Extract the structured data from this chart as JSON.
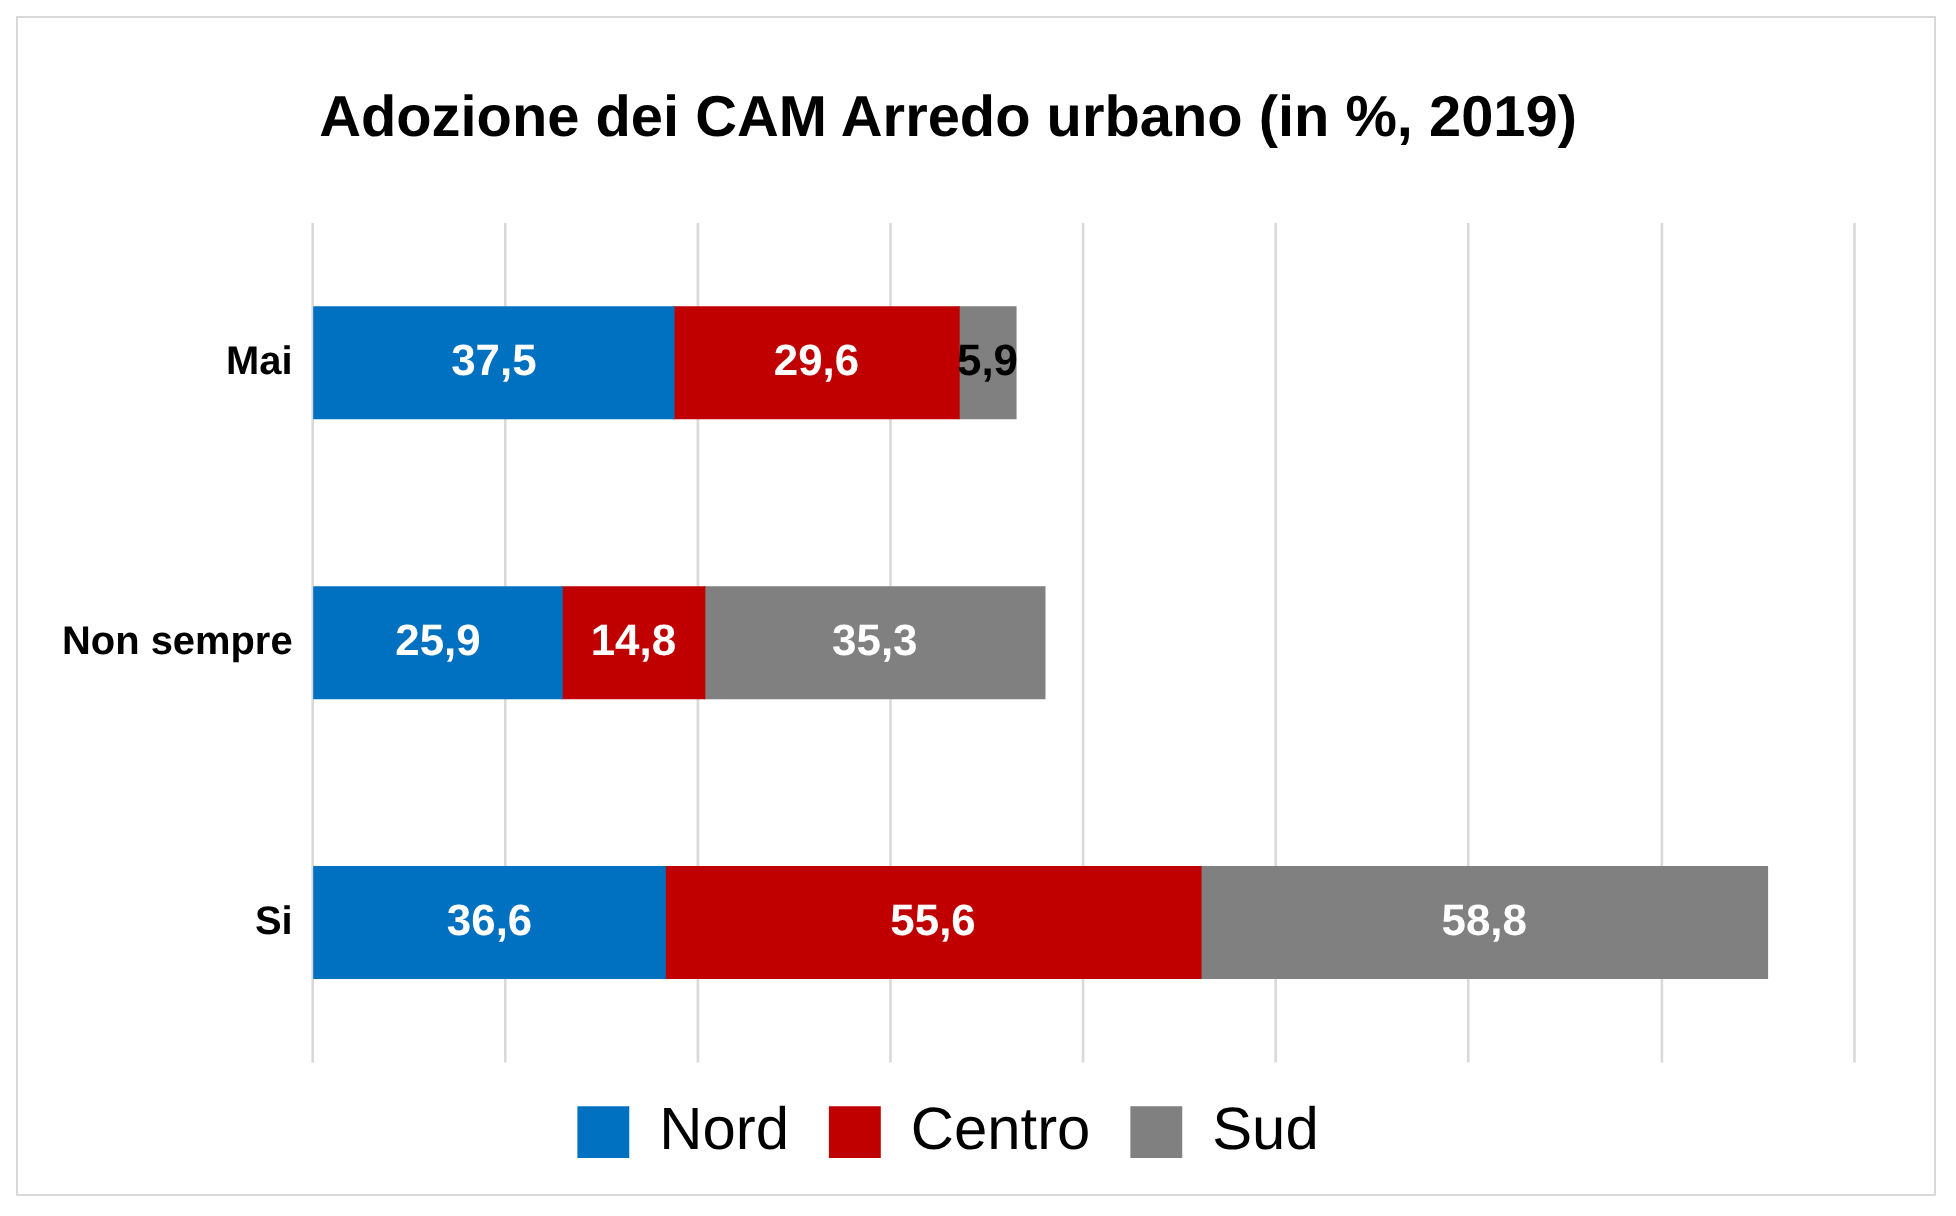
{
  "chart_data": {
    "type": "bar",
    "orientation": "horizontal",
    "stacked": true,
    "title": "Adozione dei CAM Arredo urbano (in %, 2019)",
    "categories": [
      "Mai",
      "Non sempre",
      "Si"
    ],
    "series": [
      {
        "name": "Nord",
        "color": "#0070c0",
        "values": [
          37.5,
          25.9,
          36.6
        ],
        "value_labels": [
          "37,5",
          "25,9",
          "36,6"
        ]
      },
      {
        "name": "Centro",
        "color": "#c00000",
        "values": [
          29.6,
          14.8,
          55.6
        ],
        "value_labels": [
          "29,6",
          "14,8",
          "55,6"
        ]
      },
      {
        "name": "Sud",
        "color": "#808080",
        "values": [
          5.9,
          35.3,
          58.8
        ],
        "value_labels": [
          "5,9",
          "35,3",
          "58,8"
        ]
      }
    ],
    "xlim": [
      0,
      160
    ],
    "xticks": [
      {
        "value": 0,
        "label": null
      },
      {
        "value": 20,
        "label": null
      },
      {
        "value": 40,
        "label": null
      },
      {
        "value": 60,
        "label": null
      },
      {
        "value": 80,
        "label": null
      },
      {
        "value": 100,
        "label": null
      },
      {
        "value": 120,
        "label": null
      },
      {
        "value": 140,
        "label": null
      },
      {
        "value": 160,
        "label": null
      }
    ],
    "tick_labels": "y",
    "grid": "x",
    "legend": "bottom"
  }
}
